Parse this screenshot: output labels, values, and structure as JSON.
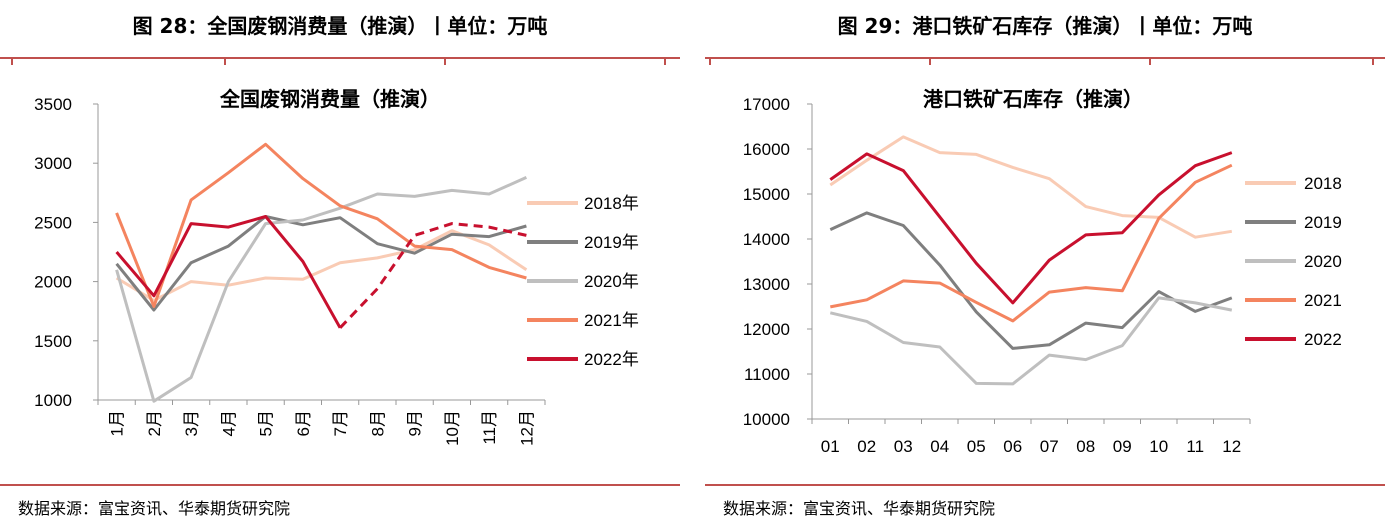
{
  "figures": [
    {
      "caption": "图 28：全国废钢消费量（推演）丨单位：万吨",
      "source": "数据来源：富宝资讯、华泰期货研究院",
      "chart_data": {
        "type": "line",
        "title": "全国废钢消费量（推演）",
        "categories": [
          "1月",
          "2月",
          "3月",
          "4月",
          "5月",
          "6月",
          "7月",
          "8月",
          "9月",
          "10月",
          "11月",
          "12月"
        ],
        "ylim": [
          1000,
          3500
        ],
        "yticks": [
          1000,
          1500,
          2000,
          2500,
          3000,
          3500
        ],
        "legend_position": "right",
        "series": [
          {
            "name": "2018年",
            "color": "#f9cbb4",
            "values": [
              2030,
              1840,
              2000,
              1970,
              2030,
              2020,
              2160,
              2200,
              2270,
              2430,
              2310,
              2100
            ]
          },
          {
            "name": "2019年",
            "color": "#7f7f7f",
            "values": [
              2150,
              1760,
              2160,
              2300,
              2550,
              2480,
              2540,
              2320,
              2240,
              2400,
              2380,
              2470
            ]
          },
          {
            "name": "2020年",
            "color": "#bfbfbf",
            "values": [
              2100,
              990,
              1190,
              2000,
              2490,
              2520,
              2620,
              2740,
              2720,
              2770,
              2740,
              2880
            ]
          },
          {
            "name": "2021年",
            "color": "#f4845f",
            "values": [
              2580,
              1790,
              2690,
              2920,
              3160,
              2870,
              2640,
              2530,
              2300,
              2270,
              2120,
              2030
            ]
          },
          {
            "name": "2022年",
            "color": "#c8102e",
            "values": [
              2250,
              1880,
              2490,
              2460,
              2550,
              2170,
              1610,
              1940,
              2390,
              2490,
              2460,
              2390
            ],
            "solid_until": 6
          }
        ]
      }
    },
    {
      "caption": "图 29：港口铁矿石库存（推演）丨单位：万吨",
      "source": "数据来源：富宝资讯、华泰期货研究院",
      "chart_data": {
        "type": "line",
        "title": "港口铁矿石库存（推演）",
        "categories": [
          "01",
          "02",
          "03",
          "04",
          "05",
          "06",
          "07",
          "08",
          "09",
          "10",
          "11",
          "12"
        ],
        "ylim": [
          10000,
          17000
        ],
        "yticks": [
          10000,
          11000,
          12000,
          13000,
          14000,
          15000,
          16000,
          17000
        ],
        "legend_position": "right",
        "series": [
          {
            "name": "2018",
            "color": "#f9cbb4",
            "values": [
              15200,
              15750,
              16270,
              15920,
              15880,
              15590,
              15340,
              14720,
              14520,
              14480,
              14040,
              14170
            ]
          },
          {
            "name": "2019",
            "color": "#7f7f7f",
            "values": [
              14210,
              14580,
              14300,
              13420,
              12380,
              11570,
              11650,
              12130,
              12030,
              12830,
              12390,
              12690
            ]
          },
          {
            "name": "2020",
            "color": "#bfbfbf",
            "values": [
              12360,
              12170,
              11700,
              11600,
              10790,
              10780,
              11420,
              11320,
              11630,
              12690,
              12580,
              12420
            ]
          },
          {
            "name": "2021",
            "color": "#f4845f",
            "values": [
              12490,
              12650,
              13070,
              13020,
              12590,
              12180,
              12820,
              12920,
              12850,
              14460,
              15260,
              15640
            ]
          },
          {
            "name": "2022",
            "color": "#c8102e",
            "values": [
              15320,
              15890,
              15520,
              14490,
              13460,
              12580,
              13530,
              14090,
              14140,
              14980,
              15630,
              15920
            ]
          }
        ]
      }
    }
  ]
}
